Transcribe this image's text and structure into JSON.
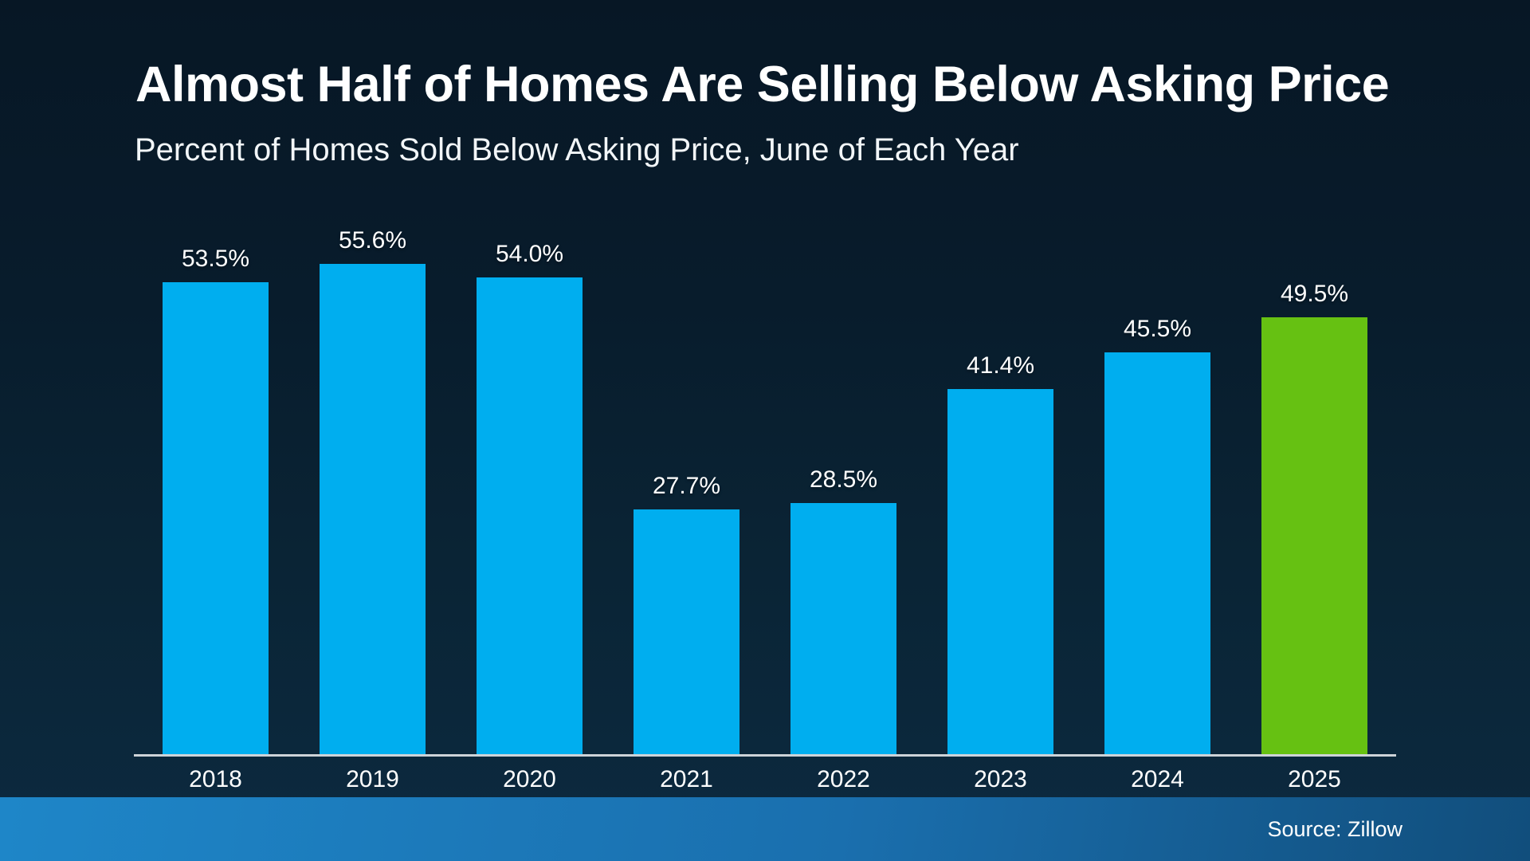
{
  "header": {
    "title": "Almost Half of Homes Are Selling Below Asking Price",
    "subtitle": "Percent of Homes Sold Below Asking Price, June of Each Year"
  },
  "chart_data": {
    "type": "bar",
    "title": "Almost Half of Homes Are Selling Below Asking Price",
    "subtitle": "Percent of Homes Sold Below Asking Price, June of Each Year",
    "categories": [
      "2018",
      "2019",
      "2020",
      "2021",
      "2022",
      "2023",
      "2024",
      "2025"
    ],
    "values": [
      53.5,
      55.6,
      54.0,
      27.7,
      28.5,
      41.4,
      45.5,
      49.5
    ],
    "value_labels": [
      "53.5%",
      "55.6%",
      "54.0%",
      "27.7%",
      "28.5%",
      "41.4%",
      "45.5%",
      "49.5%"
    ],
    "unit": "%",
    "ylim": [
      0,
      60
    ],
    "grid": false,
    "legend": null,
    "bar_color": "#00aeef",
    "highlight_color": "#66c112",
    "highlight_index": 7,
    "axis_line_color": "#cdd3d8",
    "background_top": "#071725",
    "background_bottom": "#0c2a40",
    "label_color": "#ffffff"
  },
  "footer": {
    "source_label": "Source: Zillow",
    "gradient_left": "#1e86c8",
    "gradient_mid": "#1a6fae",
    "gradient_right": "#114e7c"
  }
}
